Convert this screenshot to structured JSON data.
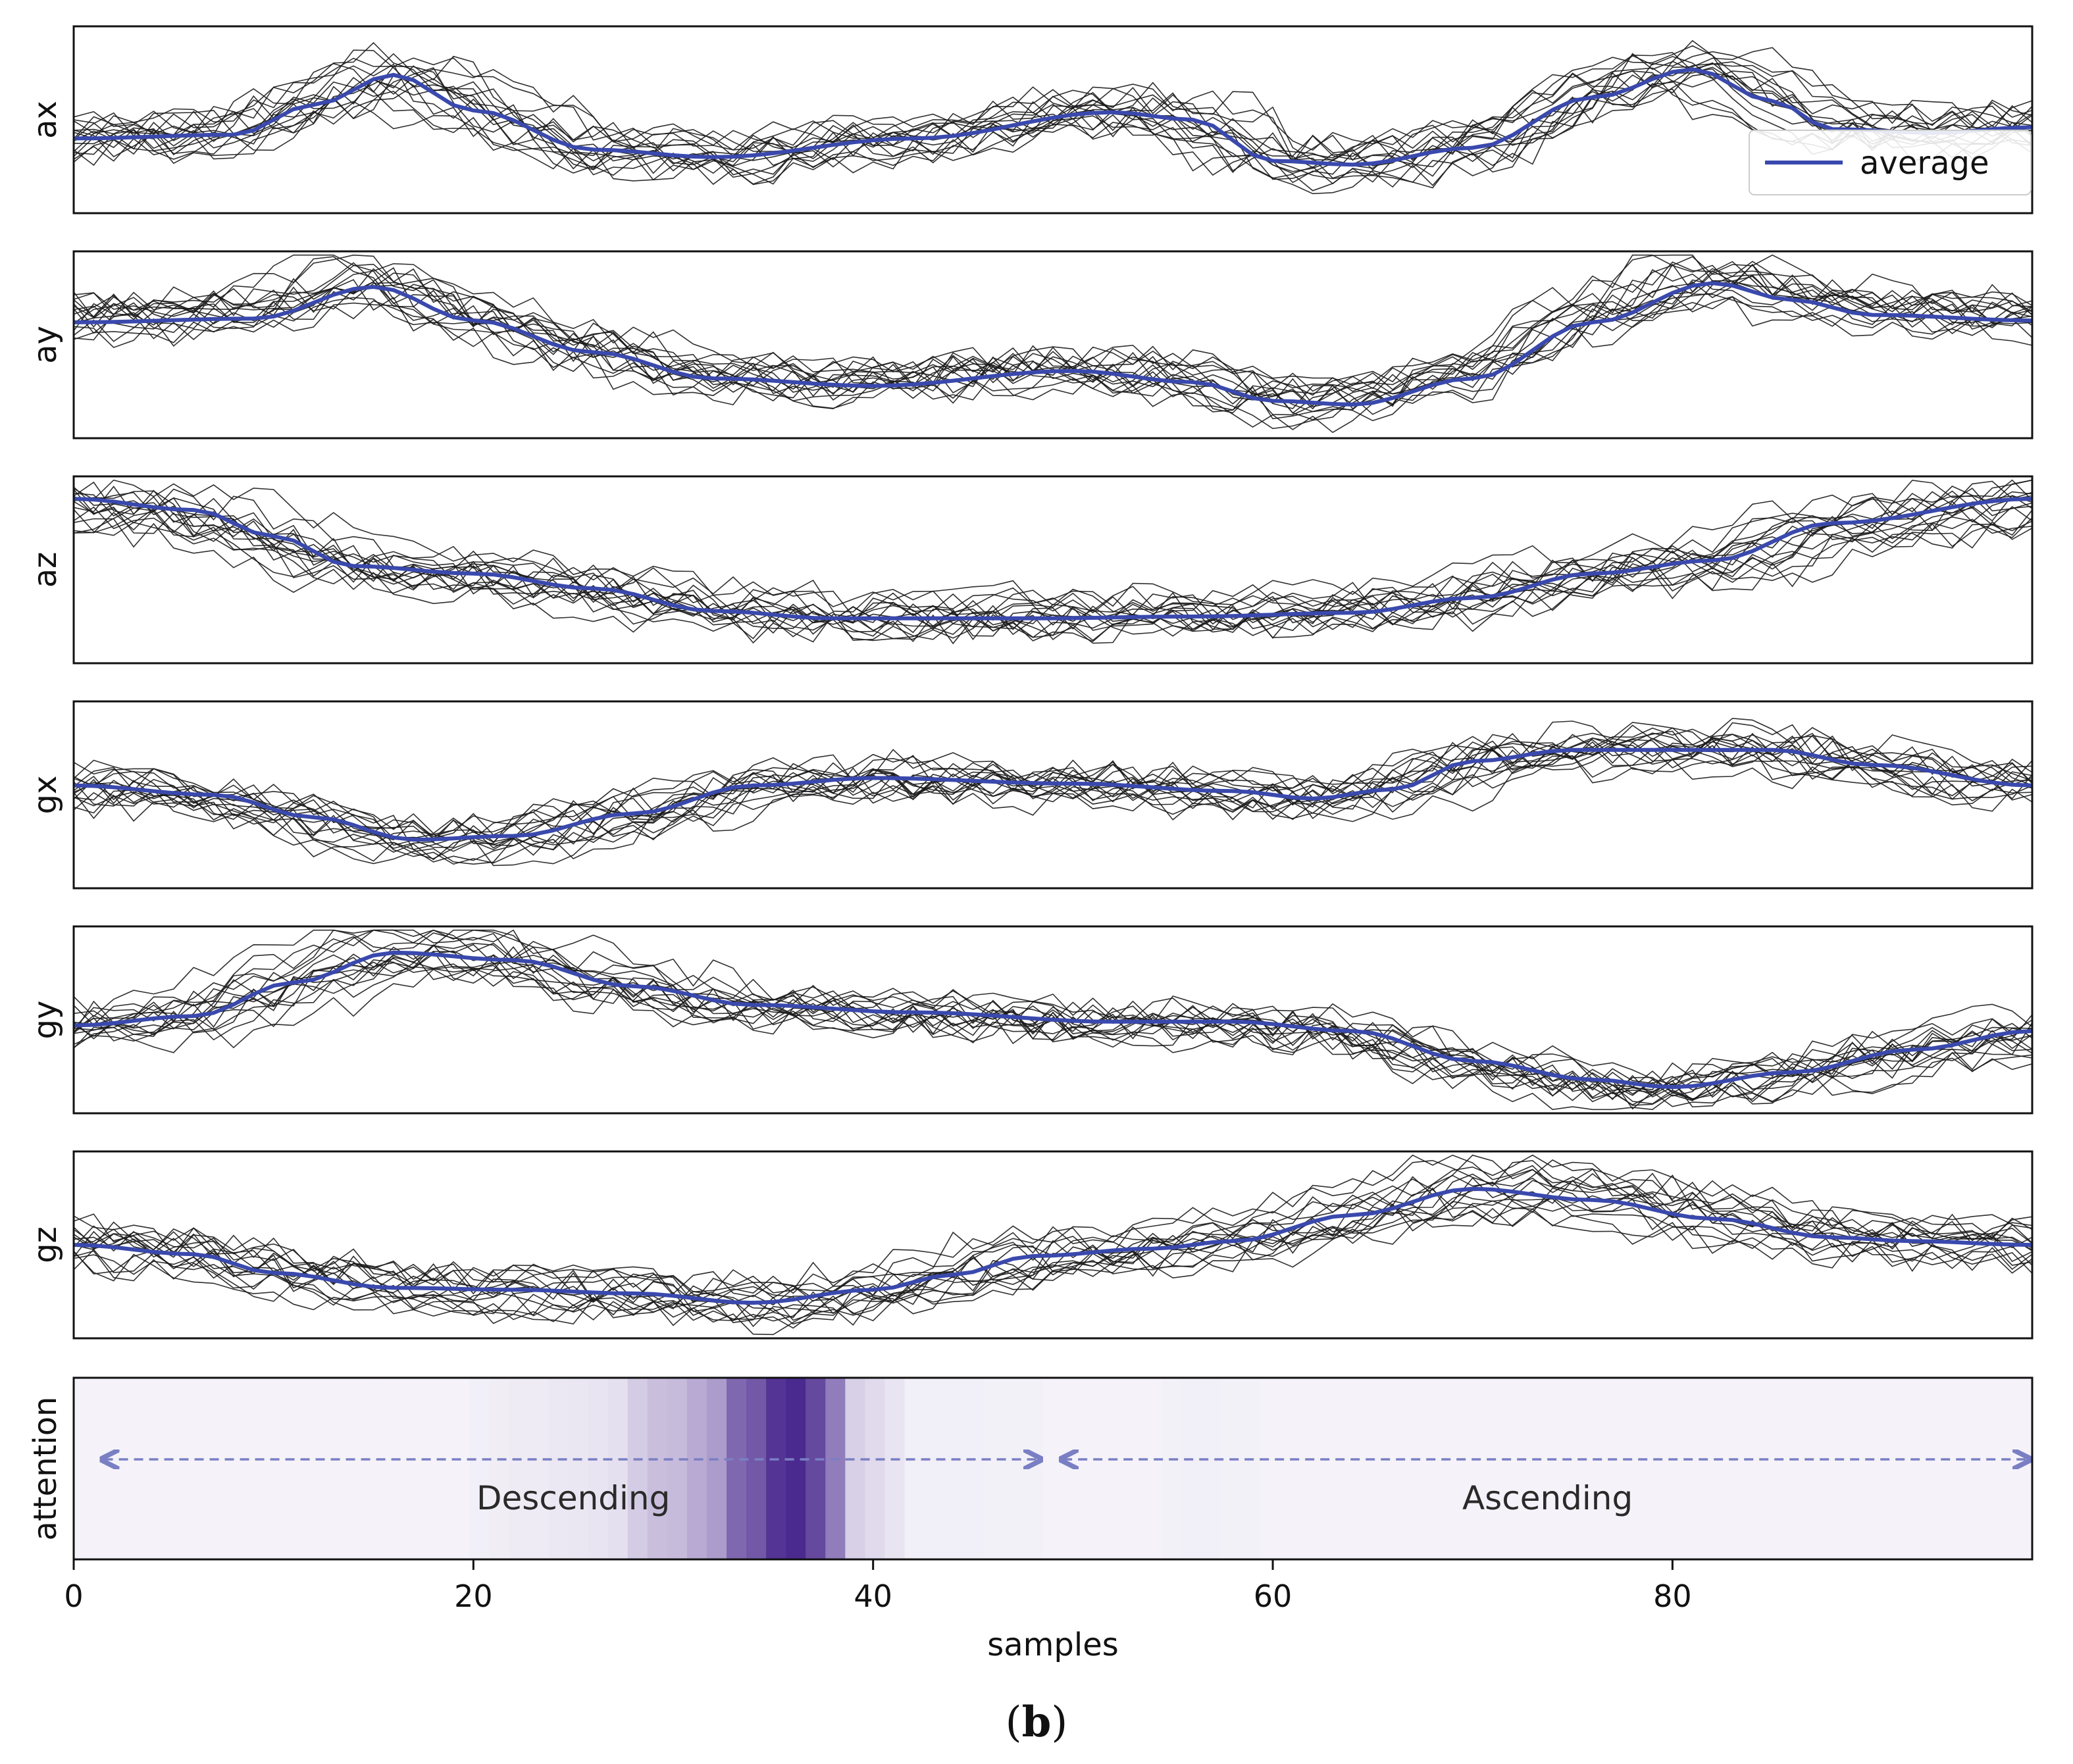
{
  "chart_data": {
    "type": "line",
    "samples": 99,
    "traces_per_panel": 16,
    "xlabel": "samples",
    "xlim": [
      0,
      98
    ],
    "xticks": [
      0,
      20,
      40,
      60,
      80
    ],
    "legend": {
      "label": "average",
      "location": "right, first panel"
    },
    "colors": {
      "average": "#3a49ad",
      "traces": "#1a1a1a",
      "attention": "#4b2a8f",
      "arrow": "#7a7fc4"
    },
    "panels": [
      {
        "label": "ax",
        "anchors": [
          [
            0,
            0.4
          ],
          [
            8,
            0.42
          ],
          [
            12,
            0.58
          ],
          [
            16,
            0.74
          ],
          [
            20,
            0.55
          ],
          [
            26,
            0.34
          ],
          [
            32,
            0.3
          ],
          [
            42,
            0.4
          ],
          [
            52,
            0.54
          ],
          [
            56,
            0.5
          ],
          [
            60,
            0.28
          ],
          [
            64,
            0.26
          ],
          [
            70,
            0.35
          ],
          [
            76,
            0.62
          ],
          [
            81,
            0.77
          ],
          [
            85,
            0.6
          ],
          [
            88,
            0.45
          ],
          [
            93,
            0.43
          ],
          [
            98,
            0.46
          ]
        ]
      },
      {
        "label": "ay",
        "anchors": [
          [
            0,
            0.62
          ],
          [
            9,
            0.64
          ],
          [
            15,
            0.81
          ],
          [
            20,
            0.63
          ],
          [
            26,
            0.46
          ],
          [
            32,
            0.32
          ],
          [
            40,
            0.28
          ],
          [
            50,
            0.36
          ],
          [
            56,
            0.3
          ],
          [
            60,
            0.2
          ],
          [
            64,
            0.18
          ],
          [
            70,
            0.32
          ],
          [
            76,
            0.62
          ],
          [
            82,
            0.83
          ],
          [
            86,
            0.74
          ],
          [
            90,
            0.66
          ],
          [
            98,
            0.63
          ]
        ]
      },
      {
        "label": "az",
        "anchors": [
          [
            0,
            0.88
          ],
          [
            6,
            0.82
          ],
          [
            10,
            0.68
          ],
          [
            14,
            0.52
          ],
          [
            20,
            0.48
          ],
          [
            26,
            0.4
          ],
          [
            32,
            0.28
          ],
          [
            38,
            0.24
          ],
          [
            48,
            0.24
          ],
          [
            56,
            0.25
          ],
          [
            64,
            0.27
          ],
          [
            70,
            0.35
          ],
          [
            76,
            0.48
          ],
          [
            82,
            0.55
          ],
          [
            88,
            0.75
          ],
          [
            98,
            0.88
          ]
        ]
      },
      {
        "label": "gx",
        "anchors": [
          [
            0,
            0.55
          ],
          [
            7,
            0.5
          ],
          [
            12,
            0.38
          ],
          [
            17,
            0.26
          ],
          [
            22,
            0.28
          ],
          [
            28,
            0.4
          ],
          [
            34,
            0.55
          ],
          [
            40,
            0.59
          ],
          [
            50,
            0.56
          ],
          [
            58,
            0.52
          ],
          [
            62,
            0.48
          ],
          [
            66,
            0.53
          ],
          [
            70,
            0.68
          ],
          [
            75,
            0.74
          ],
          [
            85,
            0.74
          ],
          [
            90,
            0.66
          ],
          [
            98,
            0.55
          ]
        ]
      },
      {
        "label": "gy",
        "anchors": [
          [
            0,
            0.47
          ],
          [
            6,
            0.52
          ],
          [
            11,
            0.7
          ],
          [
            16,
            0.86
          ],
          [
            22,
            0.82
          ],
          [
            28,
            0.68
          ],
          [
            34,
            0.58
          ],
          [
            42,
            0.54
          ],
          [
            52,
            0.49
          ],
          [
            58,
            0.49
          ],
          [
            64,
            0.44
          ],
          [
            70,
            0.28
          ],
          [
            76,
            0.18
          ],
          [
            80,
            0.14
          ],
          [
            86,
            0.22
          ],
          [
            92,
            0.34
          ],
          [
            98,
            0.44
          ]
        ]
      },
      {
        "label": "gz",
        "anchors": [
          [
            0,
            0.5
          ],
          [
            6,
            0.45
          ],
          [
            10,
            0.35
          ],
          [
            16,
            0.27
          ],
          [
            22,
            0.26
          ],
          [
            28,
            0.24
          ],
          [
            34,
            0.19
          ],
          [
            40,
            0.26
          ],
          [
            44,
            0.34
          ],
          [
            48,
            0.44
          ],
          [
            54,
            0.48
          ],
          [
            58,
            0.52
          ],
          [
            64,
            0.66
          ],
          [
            70,
            0.8
          ],
          [
            76,
            0.74
          ],
          [
            82,
            0.64
          ],
          [
            88,
            0.54
          ],
          [
            92,
            0.52
          ],
          [
            98,
            0.5
          ]
        ]
      }
    ],
    "attention": {
      "label": "attention",
      "values": [
        0.03,
        0.03,
        0.03,
        0.03,
        0.03,
        0.03,
        0.03,
        0.03,
        0.03,
        0.03,
        0.03,
        0.03,
        0.03,
        0.03,
        0.03,
        0.03,
        0.03,
        0.03,
        0.03,
        0.03,
        0.05,
        0.06,
        0.07,
        0.07,
        0.08,
        0.09,
        0.1,
        0.12,
        0.22,
        0.28,
        0.3,
        0.38,
        0.45,
        0.7,
        0.78,
        0.95,
        1.0,
        0.85,
        0.6,
        0.2,
        0.15,
        0.1,
        0.05,
        0.05,
        0.05,
        0.05,
        0.04,
        0.04,
        0.04,
        0.03,
        0.03,
        0.03,
        0.03,
        0.03,
        0.03,
        0.04,
        0.05,
        0.05,
        0.04,
        0.04,
        0.03,
        0.03,
        0.03,
        0.03,
        0.03,
        0.03,
        0.03,
        0.03,
        0.03,
        0.03,
        0.03,
        0.03,
        0.03,
        0.03,
        0.03,
        0.03,
        0.03,
        0.03,
        0.03,
        0.03,
        0.03,
        0.03,
        0.03,
        0.03,
        0.03,
        0.03,
        0.03,
        0.03,
        0.03,
        0.03,
        0.03,
        0.03,
        0.03,
        0.03,
        0.03,
        0.03,
        0.03,
        0.03,
        0.03
      ],
      "segments": [
        {
          "label": "Descending",
          "from": 1.5,
          "to": 48.5
        },
        {
          "label": "Ascending",
          "from": 49.5,
          "to": 98
        }
      ]
    }
  },
  "caption": "b"
}
